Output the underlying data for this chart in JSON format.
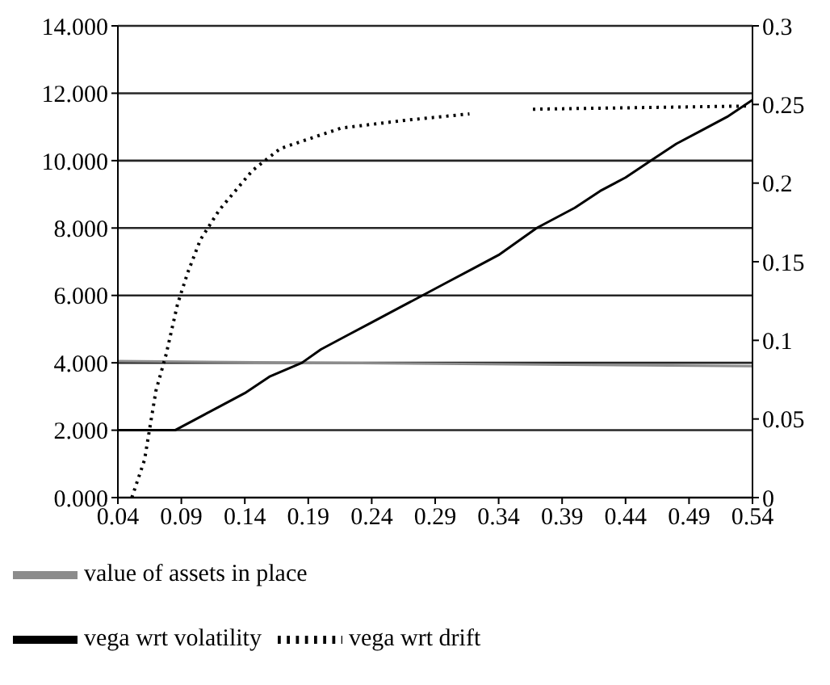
{
  "chart_data": {
    "type": "line",
    "xlim": [
      0.04,
      0.54
    ],
    "xticks": [
      0.04,
      0.09,
      0.14,
      0.19,
      0.24,
      0.29,
      0.34,
      0.39,
      0.44,
      0.49,
      0.54
    ],
    "ylim": [
      0,
      14
    ],
    "yticks": [
      {
        "value": 0,
        "label": "0.000"
      },
      {
        "value": 2,
        "label": "2.000"
      },
      {
        "value": 4,
        "label": "4.000"
      },
      {
        "value": 6,
        "label": "6.000"
      },
      {
        "value": 8,
        "label": "8.000"
      },
      {
        "value": 10,
        "label": "10.000"
      },
      {
        "value": 12,
        "label": "12.000"
      },
      {
        "value": 14,
        "label": "14.000"
      }
    ],
    "y2lim": [
      0,
      0.3
    ],
    "y2ticks": [
      0,
      0.05,
      0.1,
      0.15,
      0.2,
      0.25,
      0.3
    ],
    "grid": "y",
    "legend": "bottom",
    "marker": "none",
    "series": [
      {
        "name": "value of assets in place",
        "color": "#8c8c8c",
        "line_style": "solid",
        "x": [
          0.04,
          0.54
        ],
        "values": [
          4.05,
          3.9
        ]
      },
      {
        "name": "vega wrt volatility",
        "color": "#000000",
        "line_style": "solid",
        "x": [
          0.04,
          0.085,
          0.1,
          0.12,
          0.14,
          0.16,
          0.185,
          0.2,
          0.22,
          0.24,
          0.26,
          0.28,
          0.3,
          0.32,
          0.34,
          0.37,
          0.4,
          0.42,
          0.44,
          0.46,
          0.48,
          0.5,
          0.52,
          0.54
        ],
        "values": [
          2.0,
          2.0,
          2.3,
          2.7,
          3.1,
          3.6,
          4.0,
          4.4,
          4.8,
          5.2,
          5.6,
          6.0,
          6.4,
          6.8,
          7.2,
          8.0,
          8.6,
          9.1,
          9.5,
          10.0,
          10.5,
          10.9,
          11.3,
          11.8
        ]
      },
      {
        "name": "vega wrt drift",
        "color": "#000000",
        "line_style": "dotted",
        "axis": "y2",
        "x": [
          0.051,
          0.061,
          0.07,
          0.078,
          0.087,
          0.095,
          0.105,
          0.12,
          0.146,
          0.168,
          0.216,
          0.267,
          0.317,
          0.34,
          0.367,
          0.45,
          0.536
        ],
        "values": [
          0,
          0.024,
          0.068,
          0.091,
          0.123,
          0.143,
          0.164,
          0.183,
          0.208,
          0.222,
          0.235,
          0.24,
          0.244,
          null,
          0.247,
          0.248,
          0.249
        ]
      }
    ]
  }
}
